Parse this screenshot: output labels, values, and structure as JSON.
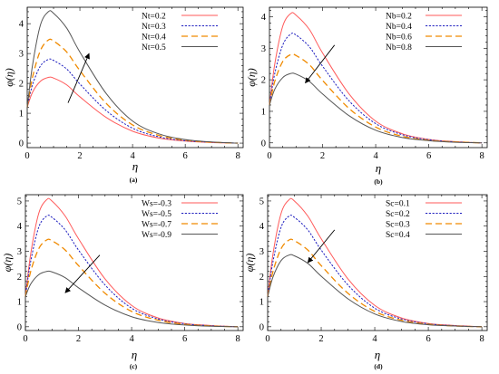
{
  "chart_data": [
    {
      "type": "line",
      "panel_label": "(a)",
      "xlabel": "η",
      "ylabel": "φ(η)",
      "xlim": [
        0,
        8.2
      ],
      "ylim": [
        -0.15,
        4.55
      ],
      "xticks": [
        "0",
        "2",
        "4",
        "6",
        "8"
      ],
      "yticks": [
        "0",
        "1",
        "2",
        "3",
        "4"
      ],
      "legend_position": "top-right",
      "series": [
        {
          "name": "Nt=0.2",
          "color": "#ff5a5a",
          "dash": "solid",
          "peak": 2.2,
          "x": [
            0,
            0.2,
            0.5,
            0.8,
            1.0,
            1.5,
            2,
            3,
            4,
            5,
            6,
            7,
            8
          ],
          "y": [
            1.2,
            1.7,
            2.07,
            2.2,
            2.18,
            1.95,
            1.55,
            0.86,
            0.4,
            0.17,
            0.07,
            0.02,
            0.0
          ]
        },
        {
          "name": "Nt=0.3",
          "color": "#1f1fbf",
          "dash": "dotted",
          "peak": 2.8,
          "x": [
            0,
            0.2,
            0.5,
            0.8,
            1.0,
            1.5,
            2,
            3,
            4,
            5,
            6,
            7,
            8
          ],
          "y": [
            1.2,
            1.95,
            2.58,
            2.8,
            2.77,
            2.48,
            1.98,
            1.09,
            0.5,
            0.21,
            0.08,
            0.03,
            0.0
          ]
        },
        {
          "name": "Nt=0.4",
          "color": "#f08a00",
          "dash": "dashed",
          "peak": 3.45,
          "x": [
            0,
            0.2,
            0.5,
            0.8,
            1.0,
            1.5,
            2,
            3,
            4,
            5,
            6,
            7,
            8
          ],
          "y": [
            1.2,
            2.2,
            3.1,
            3.45,
            3.42,
            3.05,
            2.43,
            1.33,
            0.61,
            0.26,
            0.1,
            0.03,
            0.0
          ]
        },
        {
          "name": "Nt=0.5",
          "color": "#555555",
          "dash": "solid",
          "peak": 4.4,
          "x": [
            0,
            0.2,
            0.5,
            0.8,
            1.0,
            1.5,
            2,
            3,
            4,
            5,
            6,
            7,
            8
          ],
          "y": [
            1.2,
            2.6,
            3.95,
            4.4,
            4.35,
            3.85,
            3.05,
            1.66,
            0.74,
            0.31,
            0.12,
            0.04,
            0.0
          ]
        }
      ],
      "arrow": {
        "from": [
          1.55,
          1.35
        ],
        "to": [
          2.35,
          3.0
        ]
      }
    },
    {
      "type": "line",
      "panel_label": "(b)",
      "xlabel": "η",
      "ylabel": "φ(η)",
      "xlim": [
        0,
        8.2
      ],
      "ylim": [
        -0.15,
        4.3
      ],
      "xticks": [
        "0",
        "2",
        "4",
        "6",
        "8"
      ],
      "yticks": [
        "0",
        "1",
        "2",
        "3",
        "4"
      ],
      "legend_position": "top-right",
      "series": [
        {
          "name": "Nb=0.2",
          "color": "#ff5a5a",
          "dash": "solid",
          "peak": 4.1,
          "x": [
            0,
            0.2,
            0.5,
            0.8,
            1.0,
            1.5,
            2,
            3,
            4,
            5,
            6,
            7,
            8
          ],
          "y": [
            1.2,
            2.5,
            3.7,
            4.1,
            4.05,
            3.6,
            2.85,
            1.55,
            0.69,
            0.29,
            0.11,
            0.04,
            0.0
          ]
        },
        {
          "name": "Nb=0.4",
          "color": "#1f1fbf",
          "dash": "dotted",
          "peak": 3.45,
          "x": [
            0,
            0.2,
            0.5,
            0.8,
            1.0,
            1.5,
            2,
            3,
            4,
            5,
            6,
            7,
            8
          ],
          "y": [
            1.2,
            2.2,
            3.1,
            3.45,
            3.42,
            3.05,
            2.43,
            1.33,
            0.61,
            0.26,
            0.1,
            0.03,
            0.0
          ]
        },
        {
          "name": "Nb=0.6",
          "color": "#f08a00",
          "dash": "dashed",
          "peak": 2.8,
          "x": [
            0,
            0.2,
            0.5,
            0.8,
            1.0,
            1.5,
            2,
            3,
            4,
            5,
            6,
            7,
            8
          ],
          "y": [
            1.2,
            1.95,
            2.58,
            2.8,
            2.77,
            2.48,
            1.98,
            1.09,
            0.5,
            0.21,
            0.08,
            0.03,
            0.0
          ]
        },
        {
          "name": "Nb=0.8",
          "color": "#555555",
          "dash": "solid",
          "peak": 2.2,
          "x": [
            0,
            0.2,
            0.5,
            0.8,
            1.0,
            1.5,
            2,
            3,
            4,
            5,
            6,
            7,
            8
          ],
          "y": [
            1.2,
            1.7,
            2.07,
            2.2,
            2.18,
            1.95,
            1.55,
            0.86,
            0.4,
            0.17,
            0.07,
            0.02,
            0.0
          ]
        }
      ],
      "arrow": {
        "from": [
          2.45,
          3.1
        ],
        "to": [
          1.35,
          1.9
        ]
      }
    },
    {
      "type": "line",
      "panel_label": "(c)",
      "xlabel": "η",
      "ylabel": "φ(η)",
      "xlim": [
        0,
        8.2
      ],
      "ylim": [
        -0.15,
        5.25
      ],
      "xticks": [
        "0",
        "2",
        "4",
        "6",
        "8"
      ],
      "yticks": [
        "0",
        "1",
        "2",
        "3",
        "4",
        "5"
      ],
      "legend_position": "top-right",
      "series": [
        {
          "name": "Ws=-0.3",
          "color": "#ff5a5a",
          "dash": "solid",
          "peak": 5.05,
          "x": [
            0,
            0.2,
            0.5,
            0.8,
            1.0,
            1.5,
            2,
            3,
            4,
            5,
            6,
            7,
            8
          ],
          "y": [
            1.2,
            2.9,
            4.5,
            5.05,
            5.0,
            4.4,
            3.5,
            1.9,
            0.85,
            0.35,
            0.13,
            0.05,
            0.0
          ]
        },
        {
          "name": "Ws=-0.5",
          "color": "#1f1fbf",
          "dash": "dotted",
          "peak": 4.4,
          "x": [
            0,
            0.2,
            0.5,
            0.8,
            1.0,
            1.5,
            2,
            3,
            4,
            5,
            6,
            7,
            8
          ],
          "y": [
            1.2,
            2.6,
            3.95,
            4.4,
            4.35,
            3.85,
            3.05,
            1.66,
            0.74,
            0.31,
            0.12,
            0.04,
            0.0
          ]
        },
        {
          "name": "Ws=-0.7",
          "color": "#f08a00",
          "dash": "dashed",
          "peak": 3.45,
          "x": [
            0,
            0.2,
            0.5,
            0.8,
            1.0,
            1.5,
            2,
            3,
            4,
            5,
            6,
            7,
            8
          ],
          "y": [
            1.2,
            2.2,
            3.1,
            3.45,
            3.42,
            3.05,
            2.43,
            1.33,
            0.61,
            0.26,
            0.1,
            0.03,
            0.0
          ]
        },
        {
          "name": "Ws=-0.9",
          "color": "#555555",
          "dash": "solid",
          "peak": 2.2,
          "x": [
            0,
            0.2,
            0.5,
            0.8,
            1.0,
            1.5,
            2,
            3,
            4,
            5,
            6,
            7,
            8
          ],
          "y": [
            1.2,
            1.7,
            2.07,
            2.2,
            2.18,
            1.95,
            1.55,
            0.86,
            0.4,
            0.17,
            0.07,
            0.02,
            0.0
          ]
        }
      ],
      "arrow": {
        "from": [
          2.8,
          2.85
        ],
        "to": [
          1.5,
          1.35
        ]
      }
    },
    {
      "type": "line",
      "panel_label": "(d)",
      "xlabel": "η",
      "ylabel": "φ(η)",
      "xlim": [
        0,
        8.2
      ],
      "ylim": [
        -0.15,
        5.25
      ],
      "xticks": [
        "0",
        "2",
        "4",
        "6",
        "8"
      ],
      "yticks": [
        "0",
        "1",
        "2",
        "3",
        "4",
        "5"
      ],
      "legend_position": "top-right",
      "series": [
        {
          "name": "Sc=0.1",
          "color": "#ff5a5a",
          "dash": "solid",
          "peak": 5.05,
          "x": [
            0,
            0.2,
            0.5,
            0.8,
            1.0,
            1.5,
            2,
            3,
            4,
            5,
            6,
            7,
            8
          ],
          "y": [
            1.2,
            2.9,
            4.5,
            5.05,
            5.0,
            4.4,
            3.5,
            1.9,
            0.85,
            0.35,
            0.13,
            0.05,
            0.0
          ]
        },
        {
          "name": "Sc=0.2",
          "color": "#1f1fbf",
          "dash": "dotted",
          "peak": 4.4,
          "x": [
            0,
            0.2,
            0.5,
            0.8,
            1.0,
            1.5,
            2,
            3,
            4,
            5,
            6,
            7,
            8
          ],
          "y": [
            1.2,
            2.6,
            3.95,
            4.4,
            4.35,
            3.85,
            3.05,
            1.66,
            0.74,
            0.31,
            0.12,
            0.04,
            0.0
          ]
        },
        {
          "name": "Sc=0.3",
          "color": "#f08a00",
          "dash": "dashed",
          "peak": 3.45,
          "x": [
            0,
            0.2,
            0.5,
            0.8,
            1.0,
            1.5,
            2,
            3,
            4,
            5,
            6,
            7,
            8
          ],
          "y": [
            1.2,
            2.2,
            3.1,
            3.45,
            3.42,
            3.05,
            2.43,
            1.33,
            0.61,
            0.26,
            0.1,
            0.03,
            0.0
          ]
        },
        {
          "name": "Sc=0.4",
          "color": "#555555",
          "dash": "solid",
          "peak": 2.85,
          "x": [
            0,
            0.2,
            0.5,
            0.8,
            1.0,
            1.5,
            2,
            3,
            4,
            5,
            6,
            7,
            8
          ],
          "y": [
            1.2,
            1.98,
            2.63,
            2.85,
            2.82,
            2.52,
            2.01,
            1.11,
            0.51,
            0.21,
            0.08,
            0.03,
            0.0
          ]
        }
      ],
      "arrow": {
        "from": [
          2.5,
          3.85
        ],
        "to": [
          1.5,
          2.55
        ]
      }
    }
  ]
}
